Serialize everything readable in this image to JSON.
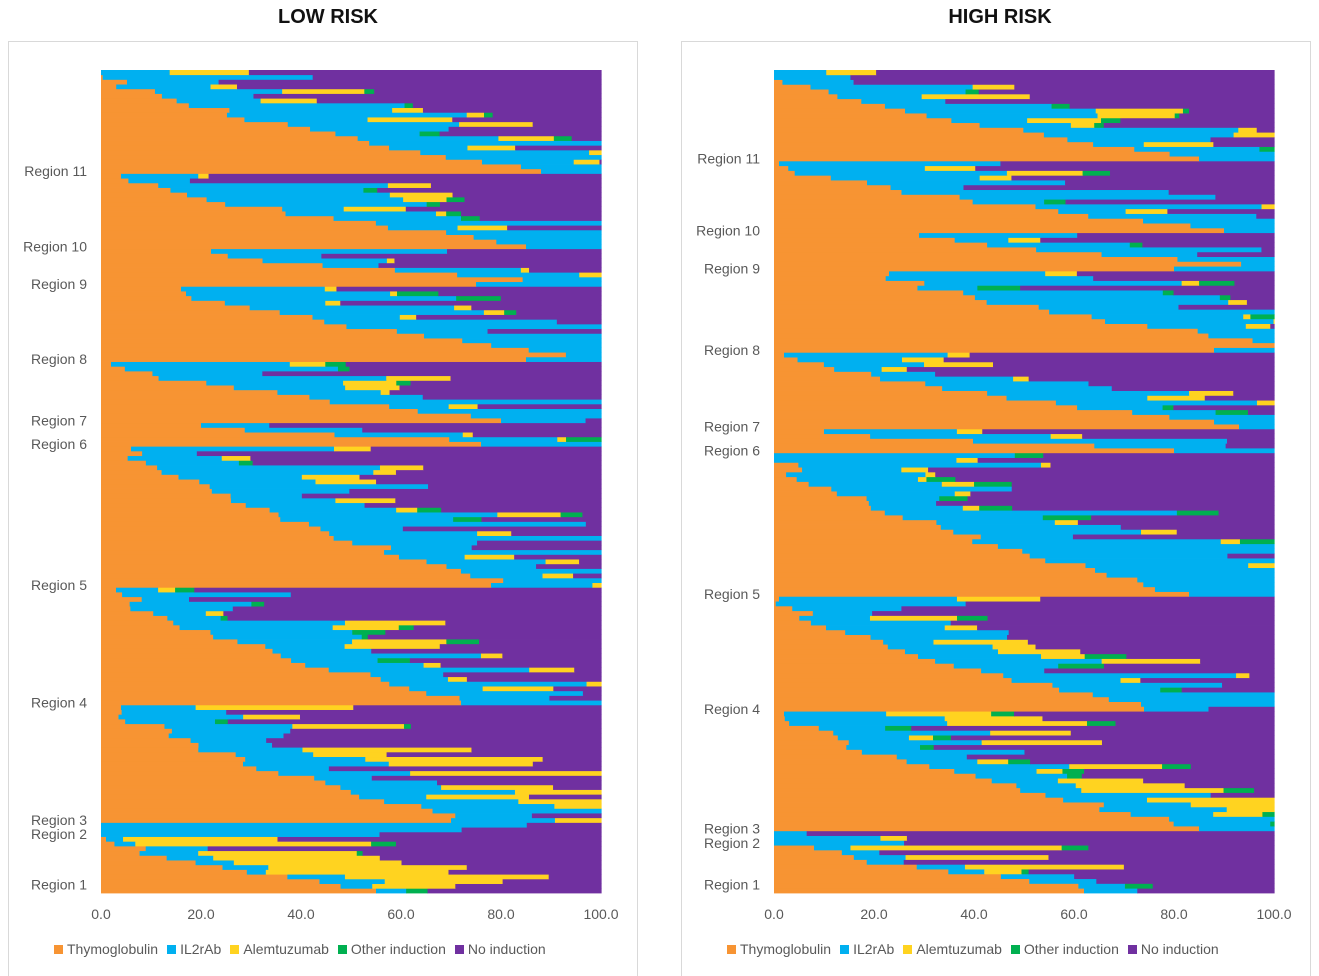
{
  "panels": {
    "low": {
      "title": "LOW RISK"
    },
    "high": {
      "title": "HIGH RISK"
    }
  },
  "legend": {
    "items": [
      {
        "label": "Thymoglobulin",
        "color": "#f79433"
      },
      {
        "label": "IL2rAb",
        "color": "#00b0f0"
      },
      {
        "label": "Alemtuzumab",
        "color": "#ffd320"
      },
      {
        "label": "Other induction",
        "color": "#00b050"
      },
      {
        "label": "No induction",
        "color": "#7030a0"
      }
    ]
  },
  "chart_data": [
    {
      "type": "bar",
      "orientation": "horizontal",
      "stacked": true,
      "title": "LOW RISK",
      "xlim": [
        0,
        100
      ],
      "x_ticks": [
        "0.0",
        "20.0",
        "40.0",
        "60.0",
        "80.0",
        "100.0"
      ],
      "categories": [
        "Region 1",
        "Region 2",
        "Region 3",
        "Region 4",
        "Region 5",
        "Region 6",
        "Region 7",
        "Region 8",
        "Region 9",
        "Region 10",
        "Region 11"
      ],
      "series_order": [
        "Thymoglobulin",
        "IL2rAb",
        "Alemtuzumab",
        "Other induction",
        "No induction"
      ],
      "region_profiles": [
        {
          "region": "Region 1",
          "rows": 12,
          "start": [
            55,
            3
          ],
          "end": [
            1,
            2
          ],
          "il2": 11,
          "alem": 28,
          "other": 3
        },
        {
          "region": "Region 2",
          "rows": 3,
          "start": [
            0,
            0
          ],
          "end": [
            0,
            0
          ],
          "il2": 88,
          "alem": 0,
          "other": 0
        },
        {
          "region": "Region 3",
          "rows": 25,
          "start": [
            70,
            1
          ],
          "end": [
            4,
            2
          ],
          "il2": 24,
          "alem": 25,
          "other": 3
        },
        {
          "region": "Region 4",
          "rows": 25,
          "start": [
            72,
            1
          ],
          "end": [
            3,
            1
          ],
          "il2": 32,
          "alem": 12,
          "other": 4
        },
        {
          "region": "Region 5",
          "rows": 30,
          "start": [
            78,
            1
          ],
          "end": [
            6,
            1
          ],
          "il2": 45,
          "alem": 8,
          "other": 5
        },
        {
          "region": "Region 6",
          "rows": 5,
          "start": [
            76,
            1
          ],
          "end": [
            20,
            1
          ],
          "il2": 48,
          "alem": 4,
          "other": 10
        },
        {
          "region": "Region 7",
          "rows": 13,
          "start": [
            80,
            1
          ],
          "end": [
            2,
            1
          ],
          "il2": 42,
          "alem": 8,
          "other": 4
        },
        {
          "region": "Region 8",
          "rows": 16,
          "start": [
            85,
            1
          ],
          "end": [
            16,
            1
          ],
          "il2": 55,
          "alem": 3,
          "other": 6
        },
        {
          "region": "Region 9",
          "rows": 8,
          "start": [
            75,
            1
          ],
          "end": [
            22,
            1
          ],
          "il2": 45,
          "alem": 4,
          "other": 3
        },
        {
          "region": "Region 10",
          "rows": 16,
          "start": [
            85,
            1
          ],
          "end": [
            4,
            1
          ],
          "il2": 45,
          "alem": 10,
          "other": 3
        },
        {
          "region": "Region 11",
          "rows": 22,
          "start": [
            88,
            1
          ],
          "end": [
            0,
            2
          ],
          "il2": 40,
          "alem": 12,
          "other": 3
        }
      ]
    },
    {
      "type": "bar",
      "orientation": "horizontal",
      "stacked": true,
      "title": "HIGH RISK",
      "xlim": [
        0,
        100
      ],
      "x_ticks": [
        "0.0",
        "20.0",
        "40.0",
        "60.0",
        "80.0",
        "100.0"
      ],
      "categories": [
        "Region 1",
        "Region 2",
        "Region 3",
        "Region 4",
        "Region 5",
        "Region 6",
        "Region 7",
        "Region 8",
        "Region 9",
        "Region 10",
        "Region 11"
      ],
      "series_order": [
        "Thymoglobulin",
        "IL2rAb",
        "Alemtuzumab",
        "Other induction",
        "No induction"
      ],
      "region_profiles": [
        {
          "region": "Region 1",
          "rows": 10,
          "start": [
            62,
            1
          ],
          "end": [
            8,
            2
          ],
          "il2": 12,
          "alem": 28,
          "other": 4
        },
        {
          "region": "Region 2",
          "rows": 3,
          "start": [
            0,
            0
          ],
          "end": [
            0,
            0
          ],
          "il2": 30,
          "alem": 5,
          "other": 0
        },
        {
          "region": "Region 3",
          "rows": 25,
          "start": [
            85,
            1
          ],
          "end": [
            2,
            2
          ],
          "il2": 30,
          "alem": 18,
          "other": 4
        },
        {
          "region": "Region 4",
          "rows": 24,
          "start": [
            74,
            1
          ],
          "end": [
            1,
            1
          ],
          "il2": 36,
          "alem": 12,
          "other": 6
        },
        {
          "region": "Region 5",
          "rows": 30,
          "start": [
            83,
            1
          ],
          "end": [
            0,
            1
          ],
          "il2": 48,
          "alem": 5,
          "other": 6
        },
        {
          "region": "Region 6",
          "rows": 5,
          "start": [
            80,
            1
          ],
          "end": [
            10,
            1
          ],
          "il2": 40,
          "alem": 4,
          "other": 12
        },
        {
          "region": "Region 7",
          "rows": 16,
          "start": [
            93,
            1
          ],
          "end": [
            2,
            1
          ],
          "il2": 40,
          "alem": 10,
          "other": 4
        },
        {
          "region": "Region 8",
          "rows": 17,
          "start": [
            88,
            1
          ],
          "end": [
            23,
            1
          ],
          "il2": 50,
          "alem": 4,
          "other": 6
        },
        {
          "region": "Region 9",
          "rows": 8,
          "start": [
            80,
            1
          ],
          "end": [
            29,
            1
          ],
          "il2": 40,
          "alem": 5,
          "other": 3
        },
        {
          "region": "Region 10",
          "rows": 15,
          "start": [
            90,
            1
          ],
          "end": [
            1,
            1
          ],
          "il2": 45,
          "alem": 10,
          "other": 4
        },
        {
          "region": "Region 11",
          "rows": 19,
          "start": [
            85,
            1
          ],
          "end": [
            0,
            2
          ],
          "il2": 35,
          "alem": 18,
          "other": 3
        }
      ]
    }
  ]
}
